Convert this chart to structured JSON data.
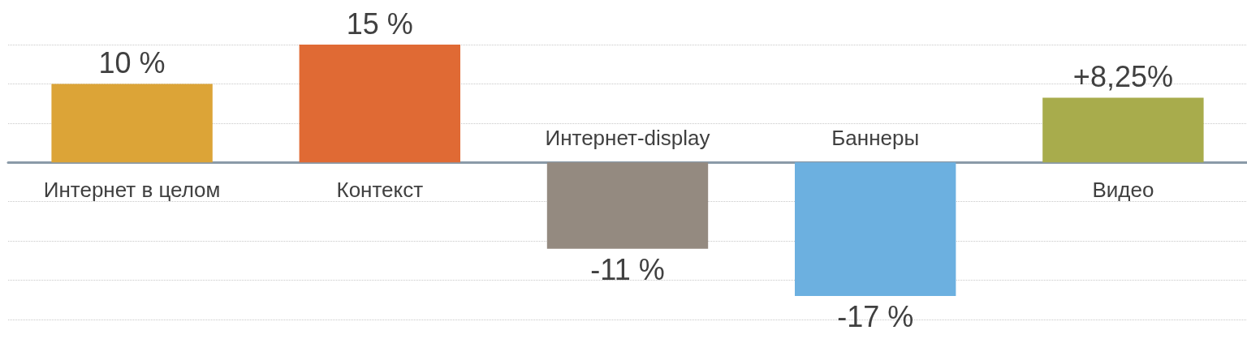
{
  "chart_data": {
    "type": "bar",
    "categories": [
      "Интернет в целом",
      "Контекст",
      "Интернет-display",
      "Баннеры",
      "Видео"
    ],
    "values": [
      10,
      15,
      -11,
      -17,
      8.25
    ],
    "colors": [
      "#dca437",
      "#e06a34",
      "#948a80",
      "#6cb0e0",
      "#a8ac4c"
    ],
    "value_labels": [
      "10 %",
      "15 %",
      "-11 %",
      "-17 %",
      "+8,25%"
    ],
    "grid": "y"
  }
}
